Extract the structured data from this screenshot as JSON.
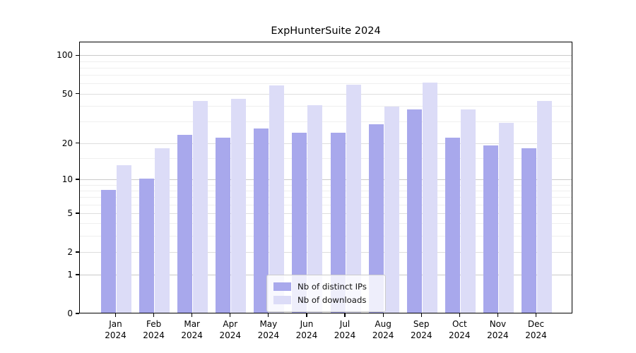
{
  "chart_data": {
    "type": "bar",
    "title": "ExpHunterSuite 2024",
    "categories": [
      "Jan 2024",
      "Feb 2024",
      "Mar 2024",
      "Apr 2024",
      "May 2024",
      "Jun 2024",
      "Jul 2024",
      "Aug 2024",
      "Sep 2024",
      "Oct 2024",
      "Nov 2024",
      "Dec 2024"
    ],
    "series": [
      {
        "name": "Nb of distinct IPs",
        "color": "#a8a8ec",
        "values": [
          8,
          10,
          23,
          22,
          26,
          24,
          24,
          28,
          37,
          22,
          19,
          18
        ]
      },
      {
        "name": "Nb of downloads",
        "color": "#dcdcf7",
        "values": [
          13,
          18,
          43,
          45,
          57,
          40,
          58,
          39,
          60,
          37,
          29,
          43
        ]
      }
    ],
    "xlabel": "",
    "ylabel": "",
    "y_scale": "log1p",
    "y_ticks": [
      0,
      1,
      2,
      5,
      10,
      20,
      50,
      100
    ],
    "y_minor_ticks": [
      3,
      4,
      6,
      7,
      8,
      9,
      15,
      30,
      40,
      60,
      70,
      80,
      90
    ],
    "y_major_gridlines": [
      1,
      10,
      100
    ],
    "ylim": [
      0,
      128
    ],
    "grid": true,
    "legend_position": "lower center",
    "colors": {
      "axis": "#000000",
      "grid_major": "#c9c9c9",
      "grid_mid": "#dedede",
      "grid_minor": "#efefef"
    }
  }
}
